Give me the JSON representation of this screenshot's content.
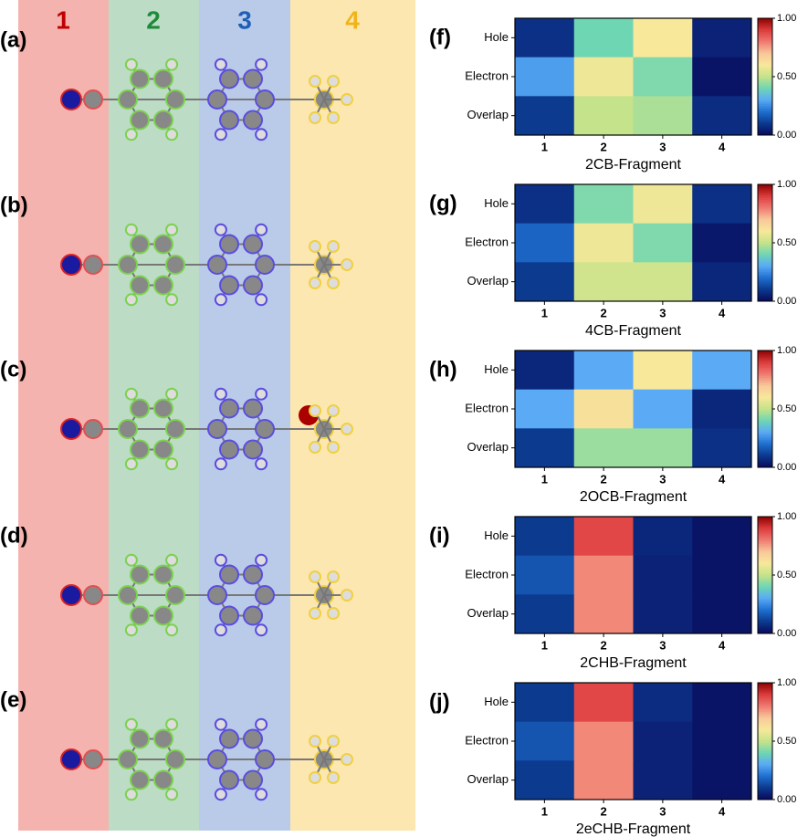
{
  "fragments": [
    "1",
    "2",
    "3",
    "4"
  ],
  "panels": [
    "(a)",
    "(b)",
    "(c)",
    "(d)",
    "(e)"
  ],
  "chart_data": [
    {
      "type": "heatmap",
      "panel": "(f)",
      "xlabel": "2CB-Fragment",
      "categories": [
        "1",
        "2",
        "3",
        "4"
      ],
      "rows": [
        "Hole",
        "Electron",
        "Overlap"
      ],
      "values": [
        [
          0.08,
          0.4,
          0.6,
          0.05
        ],
        [
          0.28,
          0.58,
          0.42,
          0.02
        ],
        [
          0.1,
          0.5,
          0.47,
          0.07
        ]
      ],
      "clim": [
        0,
        1
      ],
      "cticks": [
        {
          "value": 0,
          "label": "0.00"
        },
        {
          "value": 0.5,
          "label": "0.50"
        },
        {
          "value": 1,
          "label": "1.00"
        }
      ]
    },
    {
      "type": "heatmap",
      "panel": "(g)",
      "xlabel": "4CB-Fragment",
      "categories": [
        "1",
        "2",
        "3",
        "4"
      ],
      "rows": [
        "Hole",
        "Electron",
        "Overlap"
      ],
      "values": [
        [
          0.08,
          0.42,
          0.58,
          0.08
        ],
        [
          0.18,
          0.58,
          0.42,
          0.03
        ],
        [
          0.1,
          0.52,
          0.52,
          0.06
        ]
      ],
      "clim": [
        0,
        1
      ],
      "cticks": [
        {
          "value": 0,
          "label": "0.00"
        },
        {
          "value": 0.5,
          "label": "0.50"
        },
        {
          "value": 1,
          "label": "1.00"
        }
      ]
    },
    {
      "type": "heatmap",
      "panel": "(h)",
      "xlabel": "2OCB-Fragment",
      "categories": [
        "1",
        "2",
        "3",
        "4"
      ],
      "rows": [
        "Hole",
        "Electron",
        "Overlap"
      ],
      "values": [
        [
          0.06,
          0.3,
          0.6,
          0.3
        ],
        [
          0.3,
          0.62,
          0.3,
          0.06
        ],
        [
          0.1,
          0.45,
          0.45,
          0.08
        ]
      ],
      "clim": [
        0,
        1
      ],
      "cticks": [
        {
          "value": 0,
          "label": "0.00"
        },
        {
          "value": 0.5,
          "label": "0.50"
        },
        {
          "value": 1,
          "label": "1.00"
        }
      ]
    },
    {
      "type": "heatmap",
      "panel": "(i)",
      "xlabel": "2CHB-Fragment",
      "categories": [
        "1",
        "2",
        "3",
        "4"
      ],
      "rows": [
        "Hole",
        "Electron",
        "Overlap"
      ],
      "values": [
        [
          0.1,
          0.88,
          0.06,
          0.02
        ],
        [
          0.15,
          0.78,
          0.05,
          0.02
        ],
        [
          0.1,
          0.78,
          0.05,
          0.02
        ]
      ],
      "clim": [
        0,
        1
      ],
      "cticks": [
        {
          "value": 0,
          "label": "0.00"
        },
        {
          "value": 0.5,
          "label": "0.50"
        },
        {
          "value": 1,
          "label": "1.00"
        }
      ]
    },
    {
      "type": "heatmap",
      "panel": "(j)",
      "xlabel": "2eCHB-Fragment",
      "categories": [
        "1",
        "2",
        "3",
        "4"
      ],
      "rows": [
        "Hole",
        "Electron",
        "Overlap"
      ],
      "values": [
        [
          0.1,
          0.88,
          0.07,
          0.02
        ],
        [
          0.15,
          0.78,
          0.05,
          0.02
        ],
        [
          0.1,
          0.78,
          0.05,
          0.02
        ]
      ],
      "clim": [
        0,
        1
      ],
      "cticks": [
        {
          "value": 0,
          "label": "0.00"
        },
        {
          "value": 0.5,
          "label": "0.50"
        },
        {
          "value": 1,
          "label": "1.00"
        }
      ]
    }
  ]
}
